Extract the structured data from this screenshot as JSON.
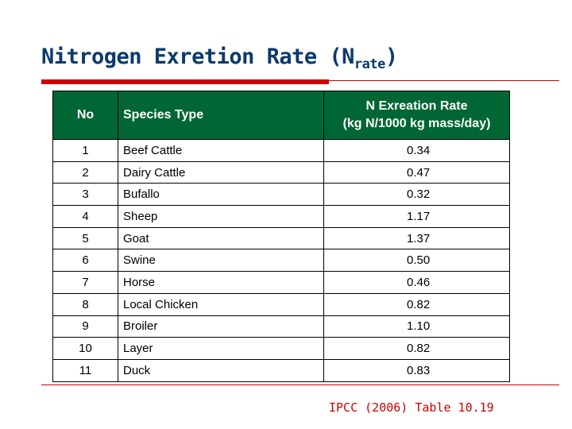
{
  "title": {
    "main": "Nitrogen Exretion Rate (N",
    "sub": "rate",
    "close": ")"
  },
  "table": {
    "headers": {
      "no": "No",
      "species": "Species Type",
      "rate_line1": "N Exreation Rate",
      "rate_line2": "(kg N/1000 kg mass/day)"
    },
    "rows": [
      {
        "no": "1",
        "species": "Beef Cattle",
        "rate": "0.34"
      },
      {
        "no": "2",
        "species": "Dairy Cattle",
        "rate": "0.47"
      },
      {
        "no": "3",
        "species": "Bufallo",
        "rate": "0.32"
      },
      {
        "no": "4",
        "species": "Sheep",
        "rate": "1.17"
      },
      {
        "no": "5",
        "species": "Goat",
        "rate": "1.37"
      },
      {
        "no": "6",
        "species": "Swine",
        "rate": "0.50"
      },
      {
        "no": "7",
        "species": "Horse",
        "rate": "0.46"
      },
      {
        "no": "8",
        "species": "Local Chicken",
        "rate": "0.82"
      },
      {
        "no": "9",
        "species": "Broiler",
        "rate": "1.10"
      },
      {
        "no": "10",
        "species": "Layer",
        "rate": "0.82"
      },
      {
        "no": "11",
        "species": "Duck",
        "rate": "0.83"
      }
    ]
  },
  "source": "IPCC (2006) Table 10.19",
  "colors": {
    "title": "#0b3a6e",
    "header_bg": "#006633",
    "accent_red": "#cc0000",
    "source": "#cc0000"
  }
}
